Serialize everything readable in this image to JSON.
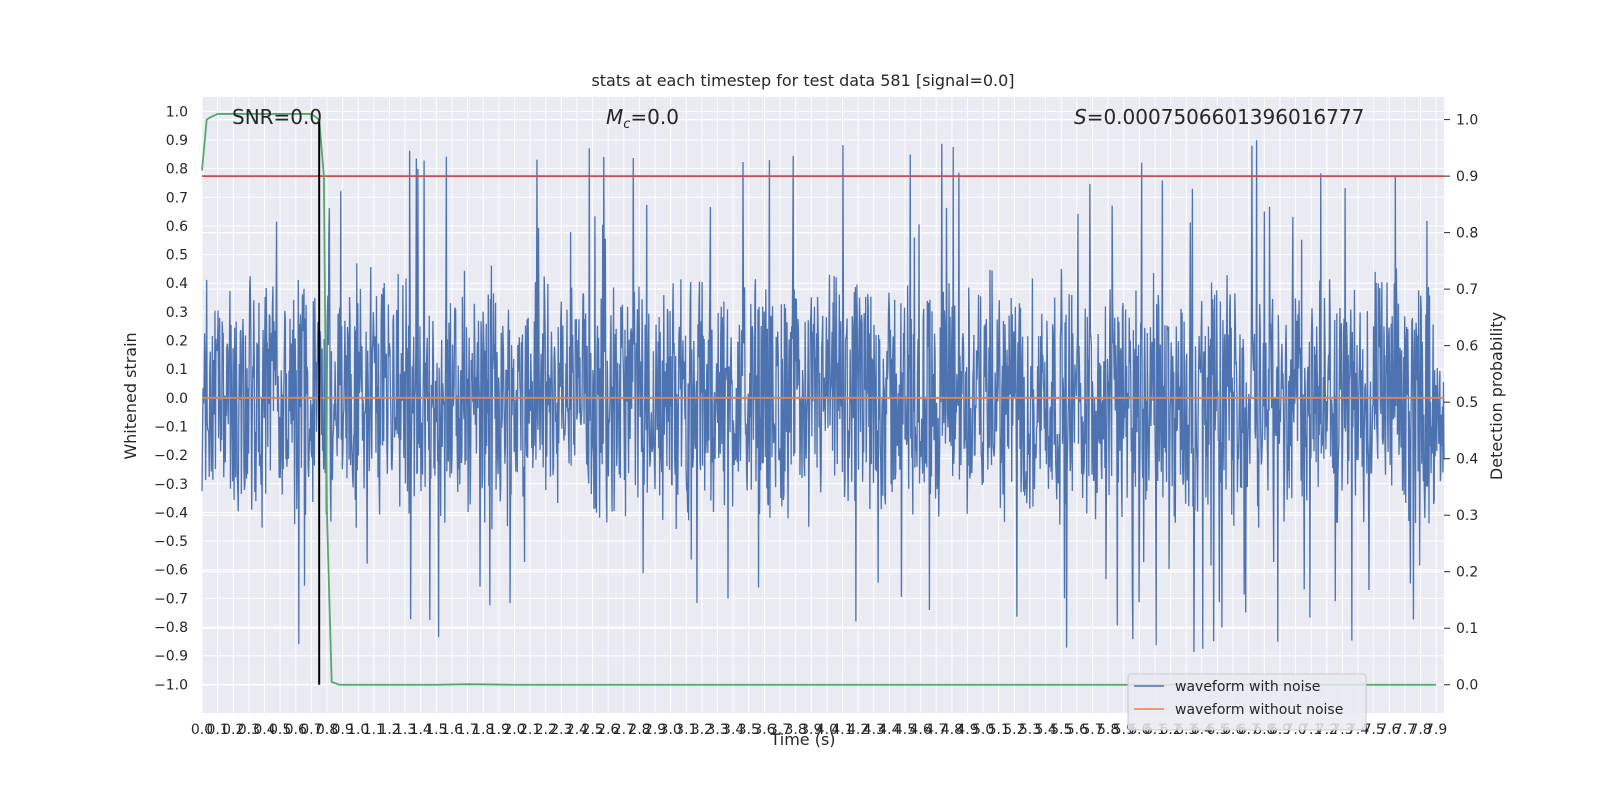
{
  "chart_data": {
    "type": "line",
    "title": "stats at each timestep for test data 581 [signal=0.0]",
    "xlabel": "Time (s)",
    "ylabel": "Whitened strain",
    "y2label": "Detection probability",
    "xlim": [
      0.0,
      7.95
    ],
    "ylim": [
      -1.1,
      1.05
    ],
    "y2lim": [
      -0.05,
      1.04
    ],
    "x_ticks": [
      "0.0",
      "0.1",
      "0.2",
      "0.3",
      "0.4",
      "0.5",
      "0.6",
      "0.7",
      "0.8",
      "0.9",
      "1.0",
      "1.1",
      "1.2",
      "1.3",
      "1.4",
      "1.5",
      "1.6",
      "1.7",
      "1.8",
      "1.9",
      "2.0",
      "2.1",
      "2.2",
      "2.3",
      "2.4",
      "2.5",
      "2.6",
      "2.7",
      "2.8",
      "2.9",
      "3.0",
      "3.1",
      "3.2",
      "3.3",
      "3.4",
      "3.5",
      "3.6",
      "3.7",
      "3.8",
      "3.9",
      "4.0",
      "4.1",
      "4.2",
      "4.3",
      "4.4",
      "4.5",
      "4.6",
      "4.7",
      "4.8",
      "4.9",
      "5.0",
      "5.1",
      "5.2",
      "5.3",
      "5.4",
      "5.5",
      "5.6",
      "5.7",
      "5.8",
      "5.9",
      "6.0",
      "6.1",
      "6.2",
      "6.3",
      "6.4",
      "6.5",
      "6.6",
      "6.7",
      "6.8",
      "6.9",
      "7.0",
      "7.1",
      "7.2",
      "7.3",
      "7.4",
      "7.5",
      "7.6",
      "7.7",
      "7.8",
      "7.9"
    ],
    "y_ticks": [
      "1.0",
      "0.9",
      "0.8",
      "0.7",
      "0.6",
      "0.5",
      "0.4",
      "0.3",
      "0.2",
      "0.1",
      "0.0",
      "−0.1",
      "−0.2",
      "−0.3",
      "−0.4",
      "−0.5",
      "−0.6",
      "−0.7",
      "−0.8",
      "−0.9",
      "−1.0"
    ],
    "y2_ticks": [
      "1.0",
      "0.9",
      "0.8",
      "0.7",
      "0.6",
      "0.5",
      "0.4",
      "0.3",
      "0.2",
      "0.1",
      "0.0"
    ],
    "annotations": {
      "snr": "SNR=0.0",
      "mc": "=0.0",
      "mc_symbol": "M",
      "mc_sub": "c",
      "s": "=0.0007506601396016777",
      "s_symbol": "S"
    },
    "series": [
      {
        "name": "waveform with noise",
        "color": "#4c72b0",
        "kind": "noise",
        "amplitude_typical": 0.4,
        "peak_max": 0.95,
        "peak_min": -0.96
      },
      {
        "name": "waveform without noise",
        "color": "#dd8452",
        "value": 0.0
      },
      {
        "color": "#55a868",
        "kind": "detection_probability",
        "x": [
          0.0,
          0.03,
          0.06,
          0.1,
          0.2,
          0.4,
          0.6,
          0.7,
          0.75,
          0.78,
          0.8,
          0.83,
          0.88,
          1.0,
          1.5,
          1.7,
          2.0,
          7.9
        ],
        "y": [
          0.91,
          1.0,
          1.005,
          1.01,
          1.01,
          1.01,
          1.01,
          1.01,
          1.0,
          0.9,
          0.3,
          0.005,
          0.0,
          0.0,
          0.0,
          0.001,
          0.0,
          0.0
        ]
      },
      {
        "color": "#c44e52",
        "kind": "threshold",
        "y2_value": 0.9
      },
      {
        "color": "#000000",
        "kind": "vline",
        "x": 0.75
      }
    ],
    "legend": {
      "placement": "lower-right",
      "entries": [
        "waveform with noise",
        "waveform without noise"
      ]
    },
    "grid": true
  }
}
